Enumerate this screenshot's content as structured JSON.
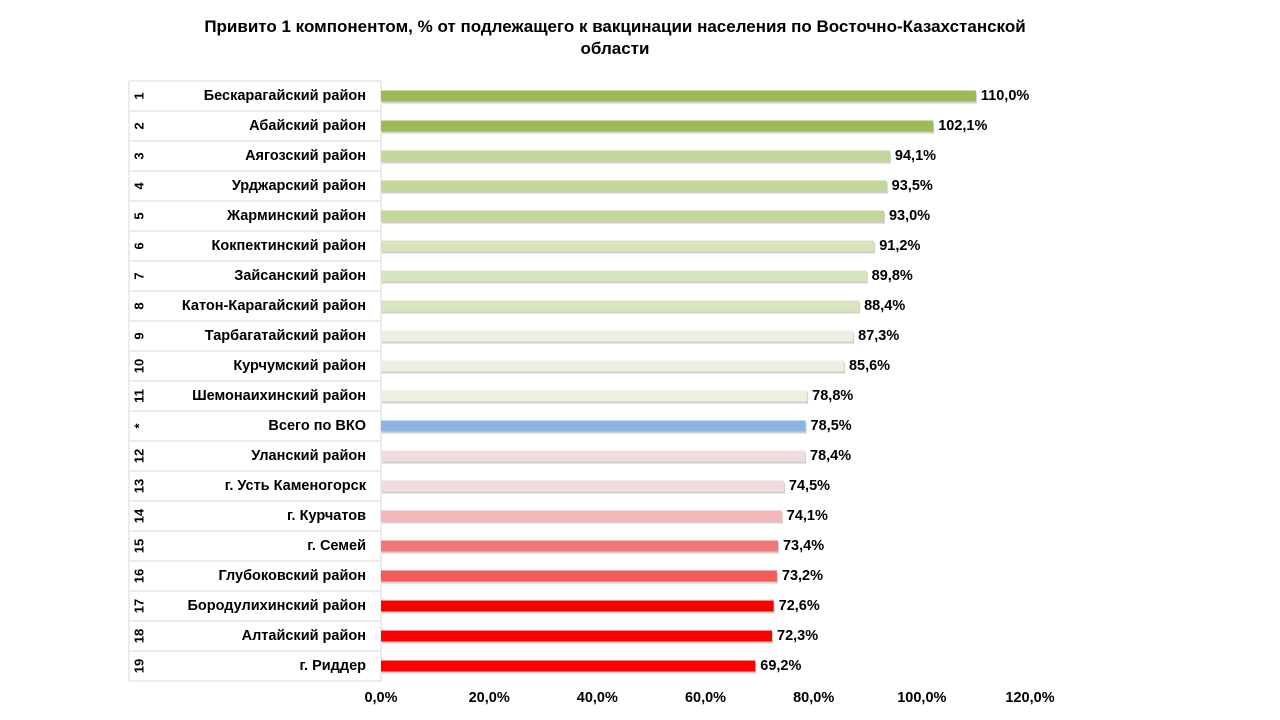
{
  "chart_data": {
    "type": "bar",
    "orientation": "horizontal",
    "title": "Привито 1 компонентом,  % от подлежащего к вакцинации населения по Восточно-Казахстанской области",
    "xlabel": "",
    "ylabel": "",
    "xlim": [
      0,
      120
    ],
    "ticks": [
      "0,0%",
      "20,0%",
      "40,0%",
      "60,0%",
      "80,0%",
      "100,0%",
      "120,0%"
    ],
    "tick_values": [
      0,
      20,
      40,
      60,
      80,
      100,
      120
    ],
    "grid": false,
    "legend": "none",
    "ranks": [
      "1",
      "2",
      "3",
      "4",
      "5",
      "6",
      "7",
      "8",
      "9",
      "10",
      "11",
      "*",
      "12",
      "13",
      "14",
      "15",
      "16",
      "17",
      "18",
      "19"
    ],
    "categories": [
      "Бескарагайский район",
      "Абайский район",
      "Аягозский район",
      "Урджарский район",
      "Жарминский район",
      "Кокпектинский район",
      "Зайсанский район",
      "Катон-Карагайский район",
      "Тарбагатайский район",
      "Курчумский район",
      "Шемонаихинский район",
      "Всего по ВКО",
      "Уланский район",
      "г. Усть Каменогорск",
      "г. Курчатов",
      "г. Семей",
      "Глубоковский район",
      "Бородулихинский район",
      "Алтайский район",
      "г. Риддер"
    ],
    "values": [
      110.0,
      102.1,
      94.1,
      93.5,
      93.0,
      91.2,
      89.8,
      88.4,
      87.3,
      85.6,
      78.8,
      78.5,
      78.4,
      74.5,
      74.1,
      73.4,
      73.2,
      72.6,
      72.3,
      69.2
    ],
    "value_labels": [
      "110,0%",
      "102,1%",
      "94,1%",
      "93,5%",
      "93,0%",
      "91,2%",
      "89,8%",
      "88,4%",
      "87,3%",
      "85,6%",
      "78,8%",
      "78,5%",
      "78,4%",
      "74,5%",
      "74,1%",
      "73,4%",
      "73,2%",
      "72,6%",
      "72,3%",
      "69,2%"
    ],
    "colors": [
      "#9bbb59",
      "#9bbb59",
      "#c3d69b",
      "#c3d69b",
      "#c3d69b",
      "#d7e4bd",
      "#d7e4bd",
      "#d7e4bd",
      "#ebf1de",
      "#ebf1de",
      "#ebf1de",
      "#8eb4e3",
      "#f2dcdb",
      "#f2dcdb",
      "#f4b6b6",
      "#f07878",
      "#f45a5a",
      "#ff0000",
      "#ff0000",
      "#ff0000"
    ],
    "frame_color": "#d9d9d9"
  }
}
